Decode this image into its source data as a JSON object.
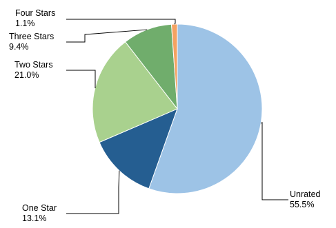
{
  "chart_data": {
    "type": "pie",
    "title": "",
    "start_angle_deg": 0,
    "direction": "clockwise",
    "legend": "none",
    "slices": [
      {
        "label": "Unrated",
        "value_label": "55.5%",
        "value": 55.5,
        "color": "#9dc3e6"
      },
      {
        "label": "One Star",
        "value_label": "13.1%",
        "value": 13.1,
        "color": "#255e91"
      },
      {
        "label": "Two Stars",
        "value_label": "21.0%",
        "value": 21.0,
        "color": "#a9d18e"
      },
      {
        "label": "Three Stars",
        "value_label": "9.4%",
        "value": 9.4,
        "color": "#70ad6c"
      },
      {
        "label": "Four Stars",
        "value_label": "1.1%",
        "value": 1.1,
        "color": "#f4a261"
      }
    ]
  }
}
